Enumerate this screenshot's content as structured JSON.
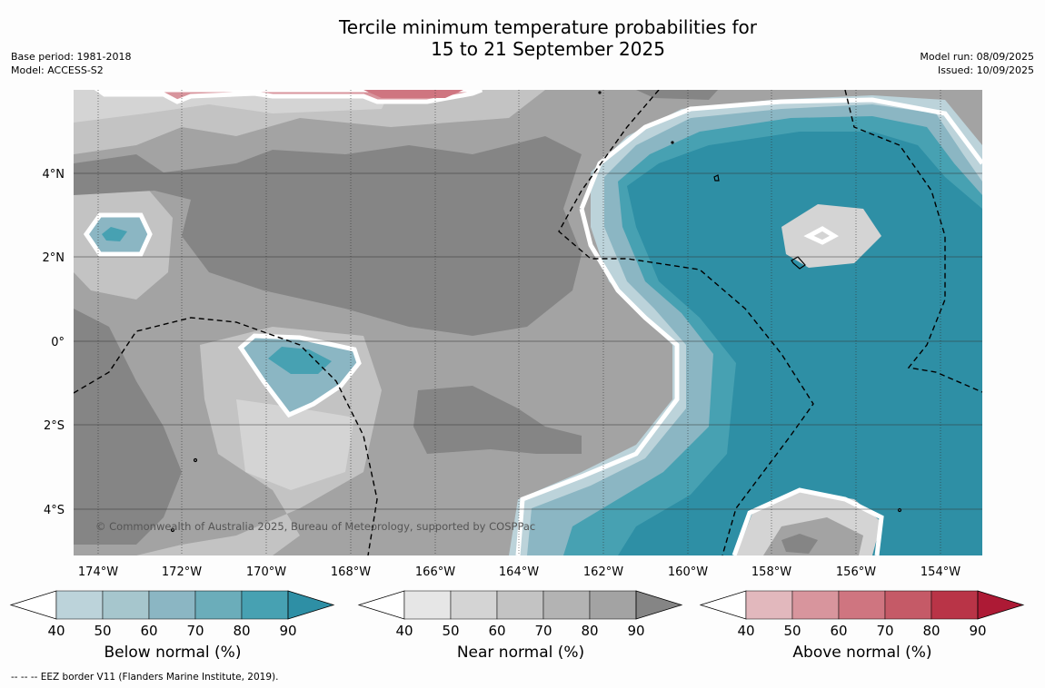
{
  "title_line1": "Tercile minimum temperature probabilities for",
  "title_line2": "15 to 21 September 2025",
  "base_period": "Base period: 1981-2018",
  "model": "Model: ACCESS-S2",
  "model_run": "Model run: 08/09/2025",
  "issued": "Issued: 10/09/2025",
  "copyright": "© Commonwealth of Australia 2025, Bureau of Meteorology, supported by COSPPac",
  "footnote": "-- -- -- EEZ border V11 (Flanders Marine Institute, 2019).",
  "lon_labels": [
    "174°W",
    "172°W",
    "170°W",
    "168°W",
    "166°W",
    "164°W",
    "162°W",
    "160°W",
    "158°W",
    "156°W",
    "154°W"
  ],
  "lat_labels": [
    "4°N",
    "2°N",
    "0°",
    "2°S",
    "4°S"
  ],
  "colorbars": [
    {
      "label": "Below normal (%)",
      "ticks": [
        "40",
        "50",
        "60",
        "70",
        "80",
        "90"
      ],
      "colors": [
        "#ffffff",
        "#bcd3da",
        "#a6c6cd",
        "#8bb6c3",
        "#6badba",
        "#47a1b2",
        "#2e8fa5"
      ]
    },
    {
      "label": "Near normal (%)",
      "ticks": [
        "40",
        "50",
        "60",
        "70",
        "80",
        "90"
      ],
      "colors": [
        "#ffffff",
        "#e6e6e6",
        "#d4d4d4",
        "#c3c3c3",
        "#b3b3b3",
        "#a3a3a3",
        "#858585"
      ]
    },
    {
      "label": "Above normal (%)",
      "ticks": [
        "40",
        "50",
        "60",
        "70",
        "80",
        "90"
      ],
      "colors": [
        "#ffffff",
        "#e2b8bd",
        "#d8959d",
        "#cf7580",
        "#c55a67",
        "#b93447",
        "#ad1a35"
      ]
    }
  ],
  "colors": {
    "near_dark": "#858585",
    "near_mid": "#a3a3a3",
    "near_light": "#c3c3c3",
    "near_lighter": "#d4d4d4",
    "below_strong": "#2e8fa5",
    "below_mid": "#47a1b2",
    "below_light": "#8bb6c3",
    "below_lighter": "#bcd3da",
    "above_mid": "#cf7580",
    "above_light": "#d8959d"
  }
}
